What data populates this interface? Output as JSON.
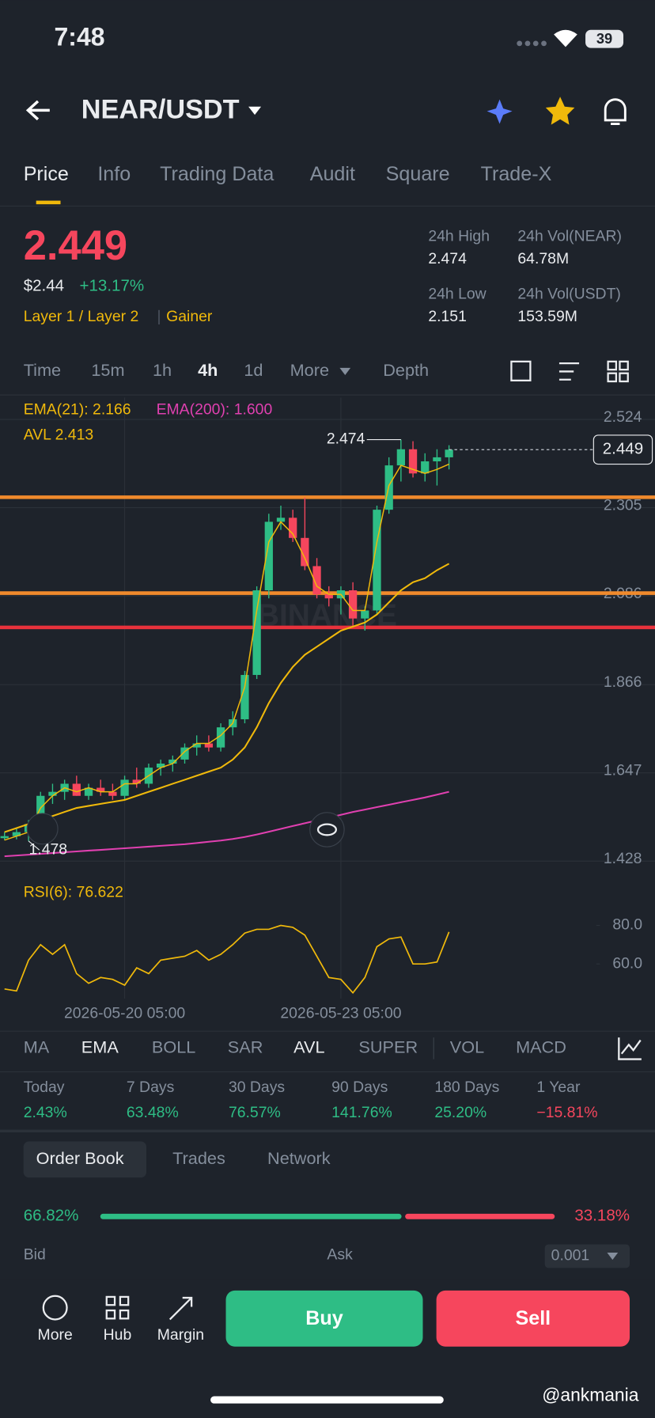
{
  "status": {
    "time": "7:48",
    "battery": "39"
  },
  "header": {
    "title": "NEAR/USDT"
  },
  "tabs": [
    {
      "label": "Price",
      "active": true
    },
    {
      "label": "Info",
      "active": false
    },
    {
      "label": "Trading Data",
      "active": false
    },
    {
      "label": "Audit",
      "active": false
    },
    {
      "label": "Square",
      "active": false
    },
    {
      "label": "Trade-X",
      "active": false
    }
  ],
  "price": {
    "last": "2.449",
    "usd": "$2.44",
    "change": "+13.17%",
    "tags": [
      "Layer 1 / Layer 2",
      "Gainer"
    ]
  },
  "stats": [
    {
      "label": "24h High",
      "value": "2.474"
    },
    {
      "label": "24h Vol(NEAR)",
      "value": "64.78M"
    },
    {
      "label": "24h Low",
      "value": "2.151"
    },
    {
      "label": "24h Vol(USDT)",
      "value": "153.59M"
    }
  ],
  "intervals": [
    {
      "label": "Time",
      "active": false
    },
    {
      "label": "15m",
      "active": false
    },
    {
      "label": "1h",
      "active": false
    },
    {
      "label": "4h",
      "active": true
    },
    {
      "label": "1d",
      "active": false
    },
    {
      "label": "More",
      "active": false
    },
    {
      "label": "Depth",
      "active": false
    }
  ],
  "chart": {
    "type": "candlestick",
    "watermark": "BINANCE",
    "open": [
      1.485,
      1.49,
      1.5,
      1.51,
      1.59,
      1.6,
      1.62,
      1.59,
      1.61,
      1.6,
      1.59,
      1.63,
      1.62,
      1.66,
      1.67,
      1.68,
      1.71,
      1.72,
      1.71,
      1.76,
      1.78,
      1.89,
      2.1,
      2.27,
      2.28,
      2.23,
      2.16,
      2.09,
      2.08,
      2.1,
      2.03,
      2.05,
      2.3,
      2.41,
      2.45,
      2.39,
      2.42,
      2.43
    ],
    "high": [
      1.5,
      1.51,
      1.53,
      1.6,
      1.62,
      1.63,
      1.64,
      1.62,
      1.63,
      1.62,
      1.64,
      1.66,
      1.67,
      1.68,
      1.69,
      1.72,
      1.74,
      1.74,
      1.77,
      1.8,
      1.9,
      2.11,
      2.29,
      2.31,
      2.3,
      2.33,
      2.18,
      2.11,
      2.11,
      2.12,
      2.06,
      2.31,
      2.43,
      2.474,
      2.47,
      2.44,
      2.45,
      2.46
    ],
    "low": [
      1.48,
      1.482,
      1.478,
      1.5,
      1.57,
      1.58,
      1.59,
      1.58,
      1.59,
      1.58,
      1.58,
      1.61,
      1.61,
      1.64,
      1.65,
      1.67,
      1.69,
      1.7,
      1.7,
      1.74,
      1.77,
      1.88,
      2.08,
      2.25,
      2.22,
      2.15,
      2.08,
      2.06,
      2.04,
      2.01,
      2.0,
      2.04,
      2.29,
      2.37,
      2.38,
      2.37,
      2.36,
      2.4
    ],
    "close": [
      1.49,
      1.5,
      1.52,
      1.59,
      1.6,
      1.62,
      1.59,
      1.61,
      1.6,
      1.59,
      1.63,
      1.62,
      1.66,
      1.67,
      1.68,
      1.71,
      1.72,
      1.71,
      1.76,
      1.78,
      1.89,
      2.1,
      2.27,
      2.28,
      2.23,
      2.16,
      2.09,
      2.08,
      2.1,
      2.03,
      2.05,
      2.3,
      2.41,
      2.45,
      2.39,
      2.42,
      2.43,
      2.449
    ],
    "up_color": "#2ebd85",
    "down_color": "#f6465d",
    "series": [
      {
        "name": "EMA(21): 2.166",
        "color": "#f0b90b",
        "values": [
          1.5,
          1.51,
          1.52,
          1.53,
          1.54,
          1.55,
          1.56,
          1.565,
          1.57,
          1.575,
          1.58,
          1.59,
          1.6,
          1.61,
          1.62,
          1.63,
          1.64,
          1.65,
          1.66,
          1.68,
          1.71,
          1.76,
          1.82,
          1.87,
          1.91,
          1.94,
          1.96,
          1.98,
          2.0,
          2.01,
          2.02,
          2.04,
          2.07,
          2.1,
          2.12,
          2.13,
          2.15,
          2.166
        ]
      },
      {
        "name": "EMA(200): 1.600",
        "color": "#e040b0",
        "values": [
          1.44,
          1.442,
          1.444,
          1.446,
          1.448,
          1.45,
          1.452,
          1.454,
          1.456,
          1.458,
          1.46,
          1.462,
          1.464,
          1.466,
          1.468,
          1.47,
          1.473,
          1.476,
          1.479,
          1.483,
          1.488,
          1.494,
          1.501,
          1.508,
          1.515,
          1.522,
          1.529,
          1.536,
          1.543,
          1.55,
          1.556,
          1.562,
          1.568,
          1.574,
          1.58,
          1.586,
          1.593,
          1.6
        ]
      },
      {
        "name": "AVL 2.413",
        "color": "#f0b90b",
        "values": [
          1.48,
          1.49,
          1.5,
          1.56,
          1.59,
          1.61,
          1.6,
          1.61,
          1.6,
          1.6,
          1.62,
          1.62,
          1.64,
          1.66,
          1.67,
          1.7,
          1.72,
          1.72,
          1.74,
          1.77,
          1.86,
          2.05,
          2.22,
          2.27,
          2.24,
          2.18,
          2.11,
          2.09,
          2.09,
          2.05,
          2.05,
          2.22,
          2.36,
          2.41,
          2.4,
          2.39,
          2.4,
          2.413
        ]
      }
    ],
    "ylim": [
      1.394,
      2.578
    ],
    "yticks": [
      2.524,
      2.305,
      2.086,
      1.866,
      1.647,
      1.428
    ],
    "xticks": [
      {
        "value": 10,
        "label": "2026-05-20 05:00"
      },
      {
        "value": 28,
        "label": "2026-05-23 05:00"
      }
    ],
    "levels": [
      {
        "value": 2.331,
        "color": "#f08a2c"
      },
      {
        "value": 2.093,
        "color": "#f08a2c"
      },
      {
        "value": 2.008,
        "color": "#e8323c"
      }
    ],
    "last_price": {
      "value": 2.449,
      "label": "2.449"
    },
    "high_marker": {
      "value": 2.474,
      "label": "2.474"
    },
    "low_marker": {
      "value": 1.478,
      "label": "1.478"
    }
  },
  "rsi": {
    "label": "RSI(6): 76.622",
    "color": "#f0b90b",
    "values": [
      47,
      46,
      62,
      70,
      65,
      70,
      55,
      50,
      53,
      52,
      49,
      58,
      55,
      62,
      63,
      64,
      67,
      62,
      65,
      70,
      76,
      78,
      78,
      80,
      79,
      75,
      64,
      53,
      52,
      45,
      53,
      69,
      73,
      74,
      60,
      60,
      61,
      76.622
    ],
    "ylim": [
      42,
      103
    ],
    "yticks": [
      {
        "value": 80,
        "label": "80.0"
      },
      {
        "value": 60,
        "label": "60.0"
      }
    ]
  },
  "indicators": [
    {
      "label": "MA",
      "active": false
    },
    {
      "label": "EMA",
      "active": true
    },
    {
      "label": "BOLL",
      "active": false
    },
    {
      "label": "SAR",
      "active": false
    },
    {
      "label": "AVL",
      "active": true
    },
    {
      "label": "SUPER",
      "active": false
    },
    {
      "label": "VOL",
      "active": false
    },
    {
      "label": "MACD",
      "active": false
    }
  ],
  "performance": [
    {
      "label": "Today",
      "value": "2.43%",
      "color": "#2ebd85"
    },
    {
      "label": "7 Days",
      "value": "63.48%",
      "color": "#2ebd85"
    },
    {
      "label": "30 Days",
      "value": "76.57%",
      "color": "#2ebd85"
    },
    {
      "label": "90 Days",
      "value": "141.76%",
      "color": "#2ebd85"
    },
    {
      "label": "180 Days",
      "value": "25.20%",
      "color": "#2ebd85"
    },
    {
      "label": "1 Year",
      "value": "−15.81%",
      "color": "#f6465d"
    }
  ],
  "order_tabs": [
    "Order Book",
    "Trades",
    "Network"
  ],
  "ratio": {
    "values": [
      66.82,
      33.18
    ],
    "value_labels": [
      "66.82%",
      "33.18%"
    ]
  },
  "book": {
    "bid": "Bid",
    "ask": "Ask",
    "precision": "0.001"
  },
  "bottom_bar": {
    "items": [
      "More",
      "Hub",
      "Margin"
    ],
    "buy": "Buy",
    "sell": "Sell"
  },
  "credit": "@ankmania"
}
